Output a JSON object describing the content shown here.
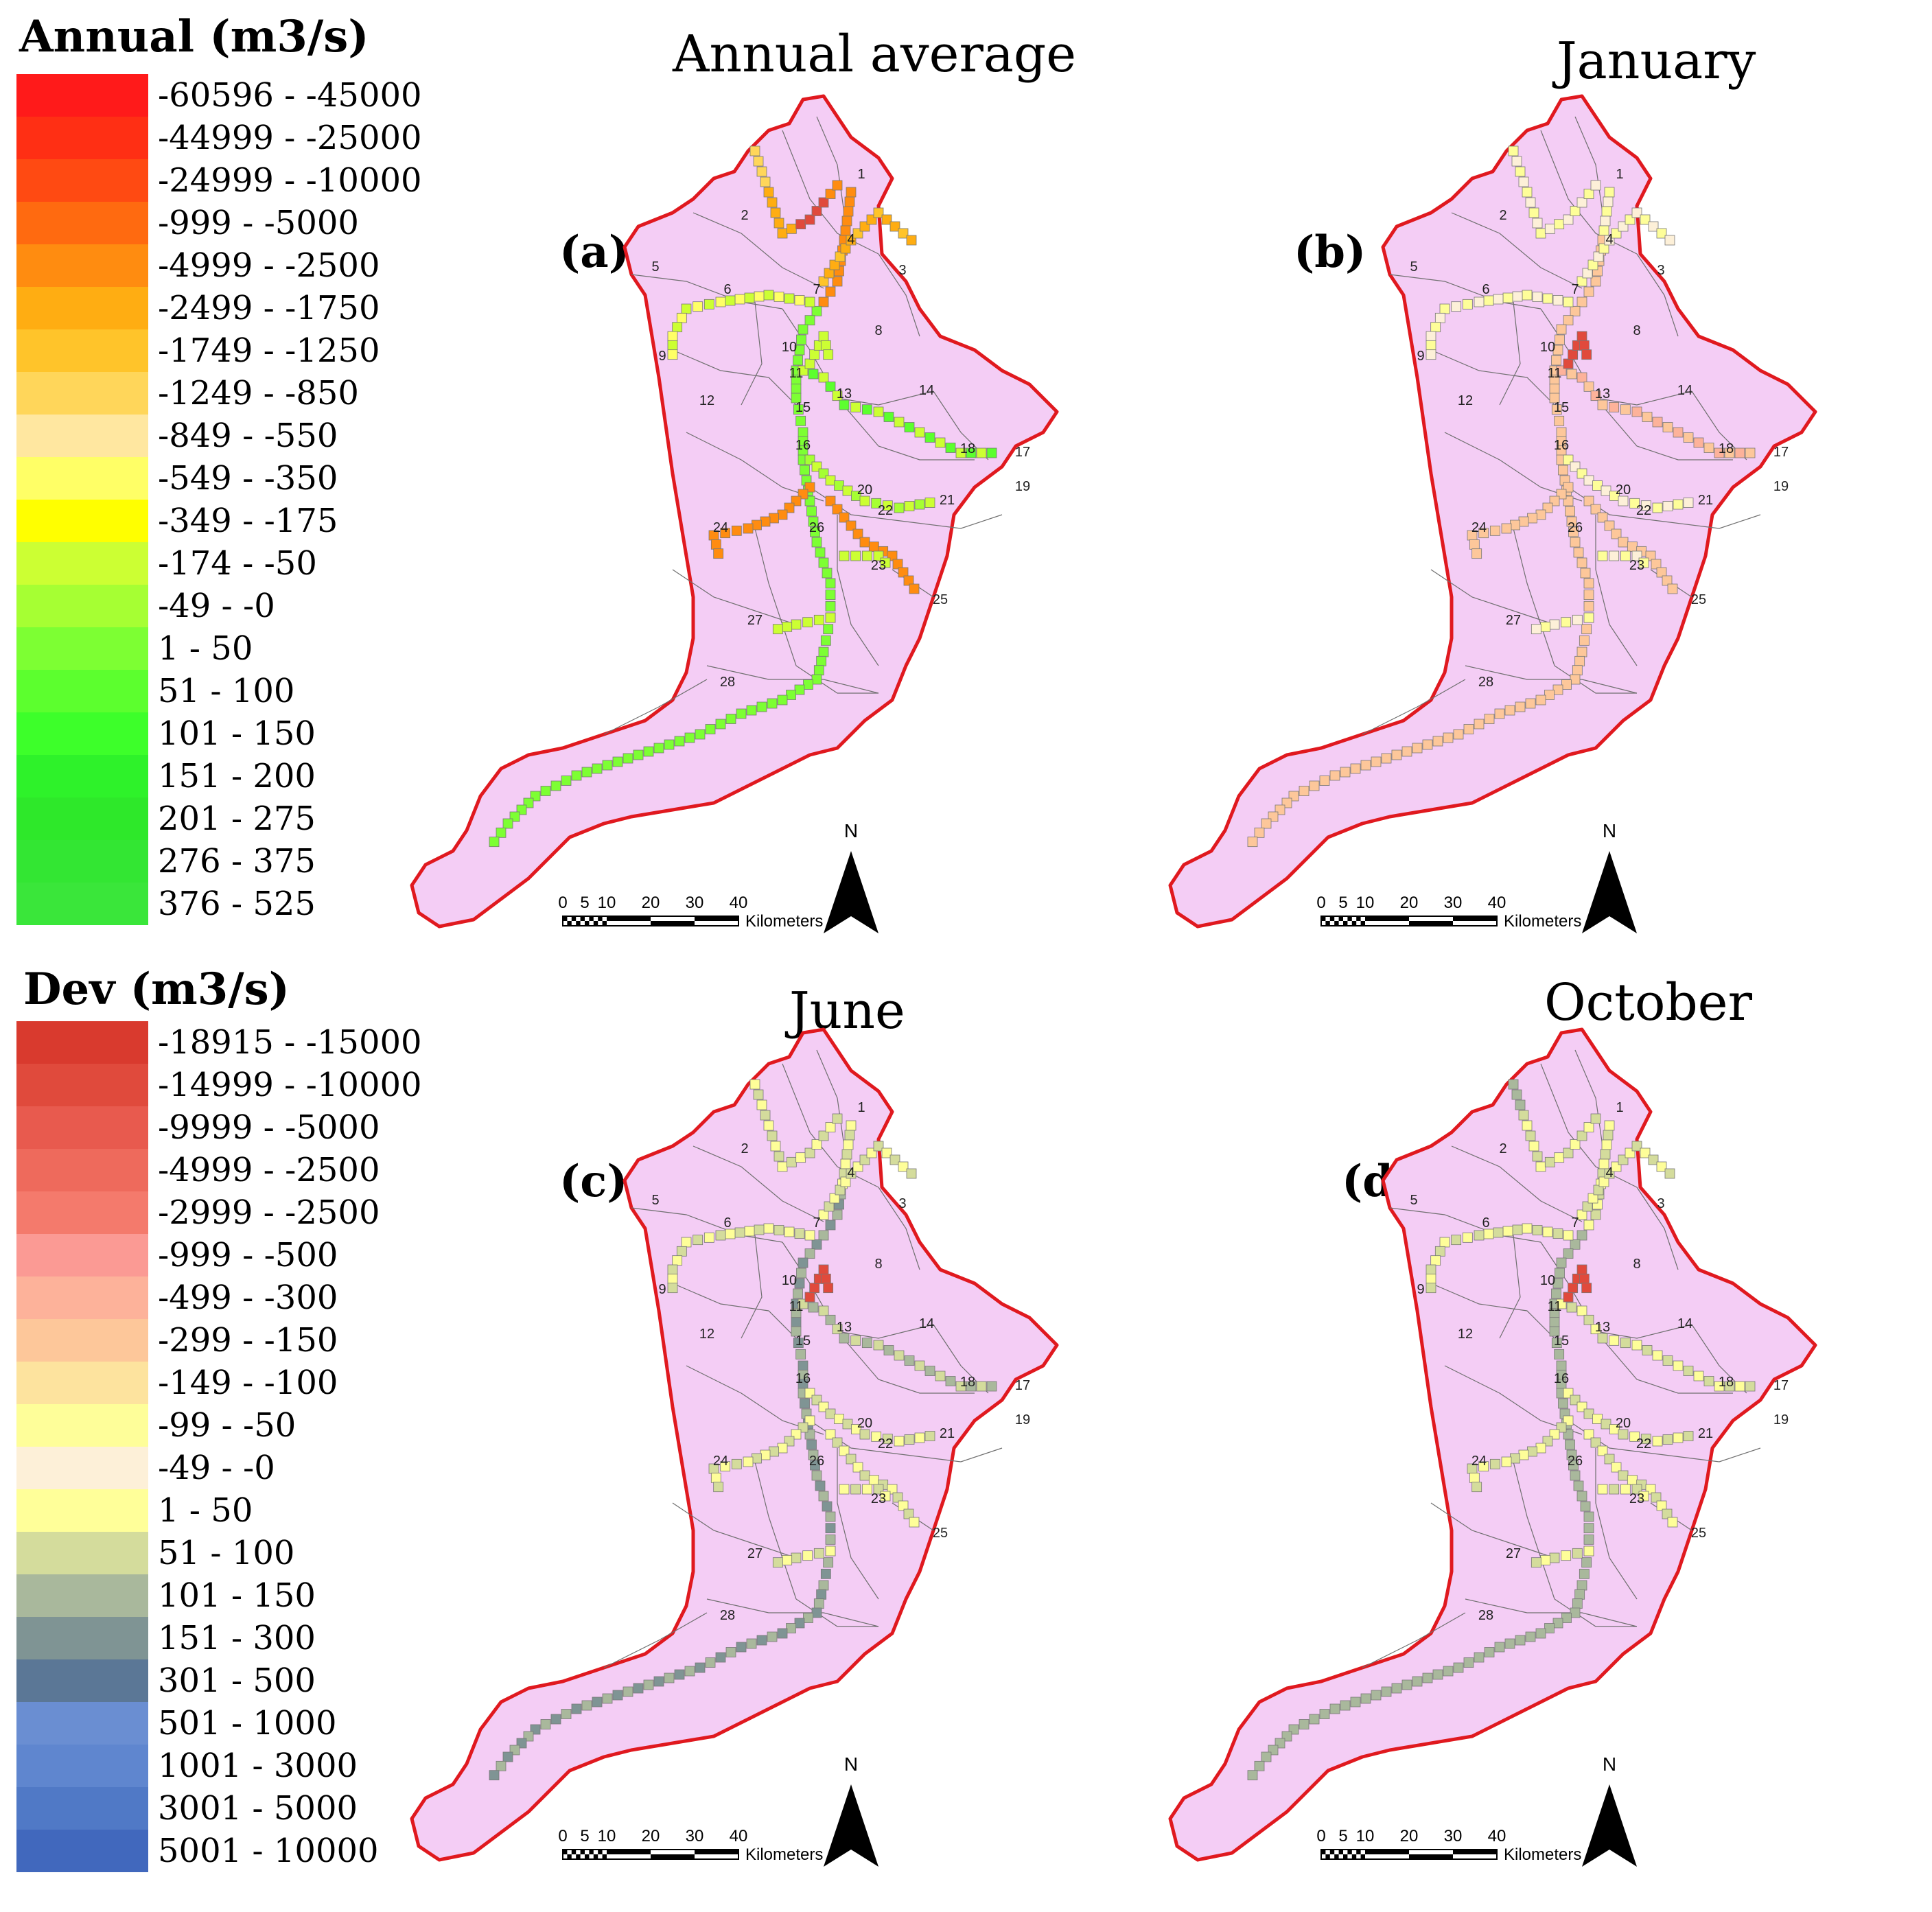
{
  "legend_annual": {
    "title": "Annual (m3/s)",
    "items": [
      {
        "label": "-60596 - -45000",
        "color": "#ff1a1a"
      },
      {
        "label": "-44999 - -25000",
        "color": "#ff2f14"
      },
      {
        "label": "-24999 - -10000",
        "color": "#ff4a12"
      },
      {
        "label": "-999 - -5000",
        "color": "#ff6a10"
      },
      {
        "label": "-4999 - -2500",
        "color": "#ff8c10"
      },
      {
        "label": "-2499 - -1750",
        "color": "#ffad12"
      },
      {
        "label": "-1749 - -1250",
        "color": "#ffc42a"
      },
      {
        "label": "-1249 - -850",
        "color": "#ffd65a"
      },
      {
        "label": "-849 - -550",
        "color": "#ffe7a0"
      },
      {
        "label": "-549 - -350",
        "color": "#ffff66"
      },
      {
        "label": "-349 - -175",
        "color": "#ffff00"
      },
      {
        "label": "-174 - -50",
        "color": "#ccff33"
      },
      {
        "label": "-49 - -0",
        "color": "#a6ff33"
      },
      {
        "label": "1 - 50",
        "color": "#7dff33"
      },
      {
        "label": "51 - 100",
        "color": "#5cff2e"
      },
      {
        "label": "101 - 150",
        "color": "#3dff2a"
      },
      {
        "label": "151 - 200",
        "color": "#2ef22a"
      },
      {
        "label": "201 - 275",
        "color": "#2ee82a"
      },
      {
        "label": "276 - 375",
        "color": "#33e633"
      },
      {
        "label": "376 - 525",
        "color": "#3ae63a"
      }
    ]
  },
  "legend_dev": {
    "title": "Dev (m3/s)",
    "items": [
      {
        "label": "-18915 - -15000",
        "color": "#d93a2e"
      },
      {
        "label": "-14999 - -10000",
        "color": "#e04a3c"
      },
      {
        "label": "-9999 - -5000",
        "color": "#e85a4e"
      },
      {
        "label": "-4999 - -2500",
        "color": "#ee6a5c"
      },
      {
        "label": "-2999 - -2500",
        "color": "#f47a6c"
      },
      {
        "label": "-999 - -500",
        "color": "#fb9a94"
      },
      {
        "label": "-499 - -300",
        "color": "#fdb29a"
      },
      {
        "label": "-299 - -150",
        "color": "#fdc79a"
      },
      {
        "label": "-149 - -100",
        "color": "#fde39e"
      },
      {
        "label": "-99 - -50",
        "color": "#fefe99"
      },
      {
        "label": "-49 - -0",
        "color": "#fdf0d8"
      },
      {
        "label": "1 - 50",
        "color": "#ffff99"
      },
      {
        "label": "51 - 100",
        "color": "#d4dc9c"
      },
      {
        "label": "101 - 150",
        "color": "#a9b89c"
      },
      {
        "label": "151 - 300",
        "color": "#7f9494"
      },
      {
        "label": "301 - 500",
        "color": "#5b7796"
      },
      {
        "label": "501 - 1000",
        "color": "#6a8ed2"
      },
      {
        "label": "1001 - 3000",
        "color": "#5f86cf"
      },
      {
        "label": "3001 - 5000",
        "color": "#5079c6"
      },
      {
        "label": "5001 - 10000",
        "color": "#4168bd"
      }
    ]
  },
  "panels": [
    {
      "title": "Annual average",
      "letter": "(a)",
      "palette": "annual"
    },
    {
      "title": "January",
      "letter": "(b)",
      "palette": "dev_jan"
    },
    {
      "title": "June",
      "letter": "(c)",
      "palette": "dev_jun"
    },
    {
      "title": "October",
      "letter": "(d)",
      "palette": "dev_oct"
    }
  ],
  "scale_bar": {
    "ticks": [
      "0",
      "5",
      "10",
      "20",
      "30",
      "40"
    ],
    "unit": "Kilometers"
  },
  "north_label": "N",
  "subbasin_numbers": [
    "1",
    "2",
    "3",
    "4",
    "5",
    "6",
    "7",
    "8",
    "9",
    "10",
    "11",
    "12",
    "13",
    "14",
    "15",
    "16",
    "17",
    "18",
    "19",
    "20",
    "21",
    "22",
    "23",
    "24",
    "25",
    "26",
    "27",
    "28"
  ],
  "colors": {
    "basin_fill": "#f4cdf5",
    "basin_outline": "#e0191f",
    "subbasin_lines": "#6f6f6f"
  }
}
